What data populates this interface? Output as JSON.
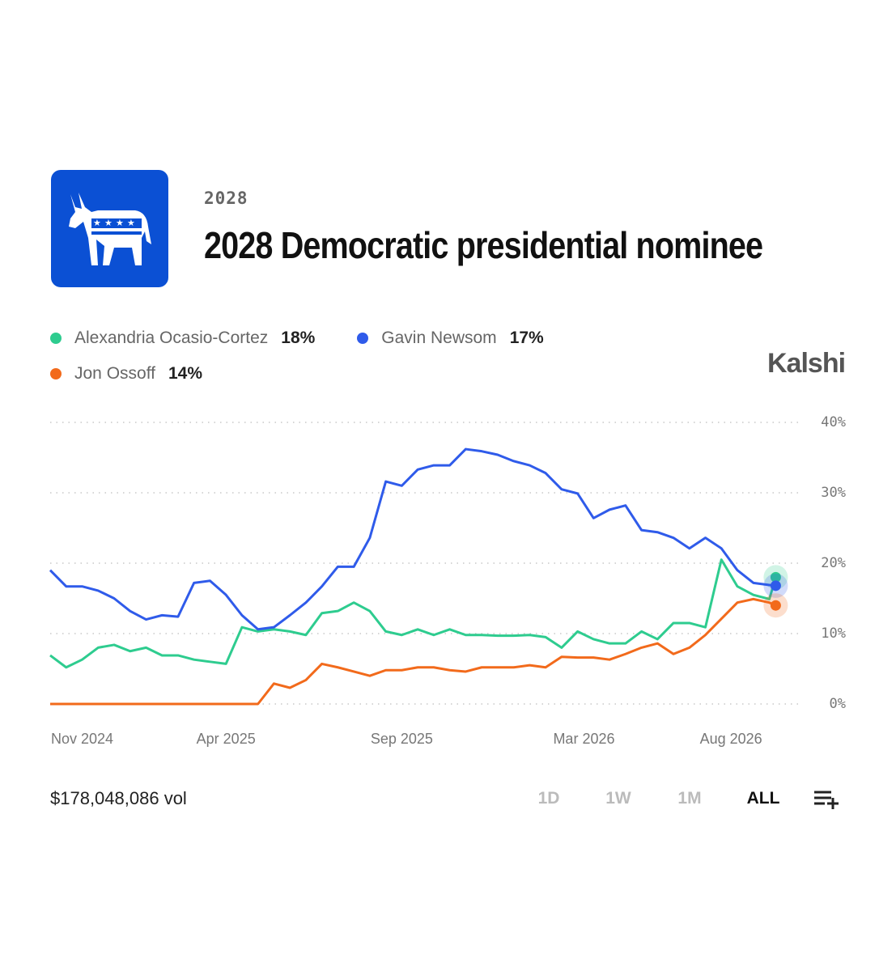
{
  "header": {
    "category": "2028",
    "title": "2028 Democratic presidential nominee",
    "brand": "Kalshi"
  },
  "chart_data": {
    "type": "line",
    "x": [
      0,
      0.5,
      1,
      1.5,
      2,
      2.5,
      3,
      3.5,
      4,
      4.5,
      5,
      5.5,
      6,
      6.5,
      7,
      7.5,
      8,
      8.5,
      9,
      9.5,
      10,
      10.5,
      11,
      11.5,
      12,
      12.5,
      13,
      13.5,
      14,
      14.5,
      15,
      15.5,
      16,
      16.5,
      17,
      17.5,
      18,
      18.5,
      19,
      19.5,
      20,
      20.5,
      21,
      21.5,
      22,
      22.5,
      22.7
    ],
    "xlim": [
      0,
      23.5
    ],
    "xticks": [
      {
        "value": 1,
        "label": "Nov 2024"
      },
      {
        "value": 5.5,
        "label": "Apr 2025"
      },
      {
        "value": 11,
        "label": "Sep 2025"
      },
      {
        "value": 16.7,
        "label": "Mar 2026"
      },
      {
        "value": 21.3,
        "label": "Aug 2026"
      }
    ],
    "ylim": [
      0,
      40
    ],
    "yticks": [
      {
        "value": 0,
        "label": "0%"
      },
      {
        "value": 10,
        "label": "10%"
      },
      {
        "value": 20,
        "label": "20%"
      },
      {
        "value": 30,
        "label": "30%"
      },
      {
        "value": 40,
        "label": "40%"
      }
    ],
    "grid": true,
    "series": [
      {
        "name": "Alexandria Ocasio-Cortez",
        "color": "#2ecc8f",
        "current": 18,
        "current_label": "18%",
        "values": [
          6.9,
          5.2,
          6.3,
          8,
          8.4,
          7.5,
          8,
          6.9,
          6.9,
          6.3,
          6,
          5.7,
          10.9,
          10.3,
          10.6,
          10.3,
          9.8,
          12.9,
          13.2,
          14.4,
          13.2,
          10.3,
          9.8,
          10.6,
          9.8,
          10.6,
          9.8,
          9.8,
          9.7,
          9.7,
          9.8,
          9.5,
          8,
          10.3,
          9.2,
          8.6,
          8.6,
          10.3,
          9.2,
          11.5,
          11.5,
          10.9,
          20.5,
          16.7,
          15.5,
          14.9,
          18
        ]
      },
      {
        "name": "Gavin Newsom",
        "color": "#2f5bea",
        "current": 17,
        "current_label": "17%",
        "values": [
          19,
          16.7,
          16.7,
          16.1,
          15,
          13.2,
          12,
          12.6,
          12.4,
          17.2,
          17.5,
          15.5,
          12.6,
          10.6,
          10.9,
          12.6,
          14.4,
          16.7,
          19.5,
          19.5,
          23.6,
          31.6,
          31,
          33.3,
          33.9,
          33.9,
          36.2,
          35.9,
          35.4,
          34.5,
          33.9,
          32.8,
          30.5,
          29.9,
          26.4,
          27.6,
          28.2,
          24.7,
          24.4,
          23.6,
          22.1,
          23.6,
          22.1,
          19,
          17.2,
          16.9,
          16.8
        ]
      },
      {
        "name": "Jon Ossoff",
        "color": "#f26a1b",
        "current": 14,
        "current_label": "14%",
        "values": [
          0,
          0,
          0,
          0,
          0,
          0,
          0,
          0,
          0,
          0,
          0,
          0,
          0,
          0,
          2.9,
          2.3,
          3.4,
          5.7,
          5.2,
          4.6,
          4,
          4.8,
          4.8,
          5.2,
          5.2,
          4.8,
          4.6,
          5.2,
          5.2,
          5.2,
          5.5,
          5.2,
          6.7,
          6.6,
          6.6,
          6.3,
          7.1,
          8,
          8.6,
          7.1,
          8,
          9.8,
          12.1,
          14.4,
          14.9,
          14.4,
          14
        ]
      }
    ]
  },
  "footer": {
    "volume": "$178,048,086 vol",
    "ranges": [
      "1D",
      "1W",
      "1M",
      "ALL"
    ],
    "selected_range": 3
  }
}
